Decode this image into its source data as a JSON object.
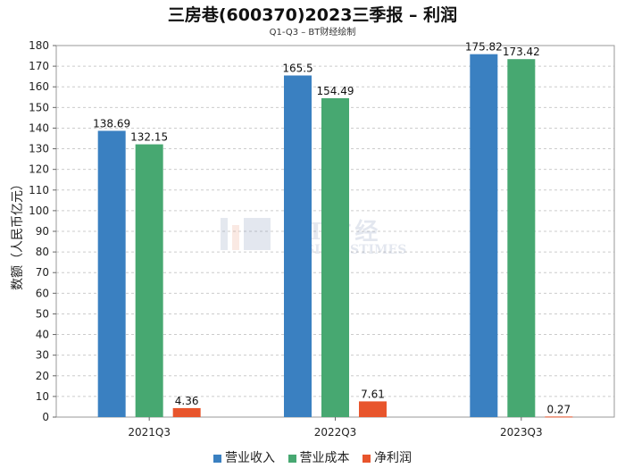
{
  "title": "三房巷(600370)2023三季报 – 利润",
  "subtitle": "Q1-Q3 – BT财经绘制",
  "watermark": {
    "main": "BT财经",
    "sub": "BUSINESSTIMES"
  },
  "colors": {
    "series0": "#3a80c1",
    "series1": "#47a871",
    "series2": "#e8552c",
    "grid": "#cccccc"
  },
  "chart_data": {
    "type": "bar",
    "title": "三房巷(600370)2023三季报 – 利润",
    "subtitle": "Q1-Q3 – BT财经绘制",
    "xlabel": "",
    "ylabel": "数额（人民币亿元）",
    "categories": [
      "2021Q3",
      "2022Q3",
      "2023Q3"
    ],
    "series": [
      {
        "name": "营业收入",
        "values": [
          138.69,
          165.5,
          175.82
        ]
      },
      {
        "name": "营业成本",
        "values": [
          132.15,
          154.49,
          173.42
        ]
      },
      {
        "name": "净利润",
        "values": [
          4.36,
          7.61,
          0.27
        ]
      }
    ],
    "ylim": [
      0,
      180
    ],
    "yticks": [
      0,
      10,
      20,
      30,
      40,
      50,
      60,
      70,
      80,
      90,
      100,
      110,
      120,
      130,
      140,
      150,
      160,
      170,
      180
    ],
    "grid": true,
    "legend": "bottom"
  }
}
